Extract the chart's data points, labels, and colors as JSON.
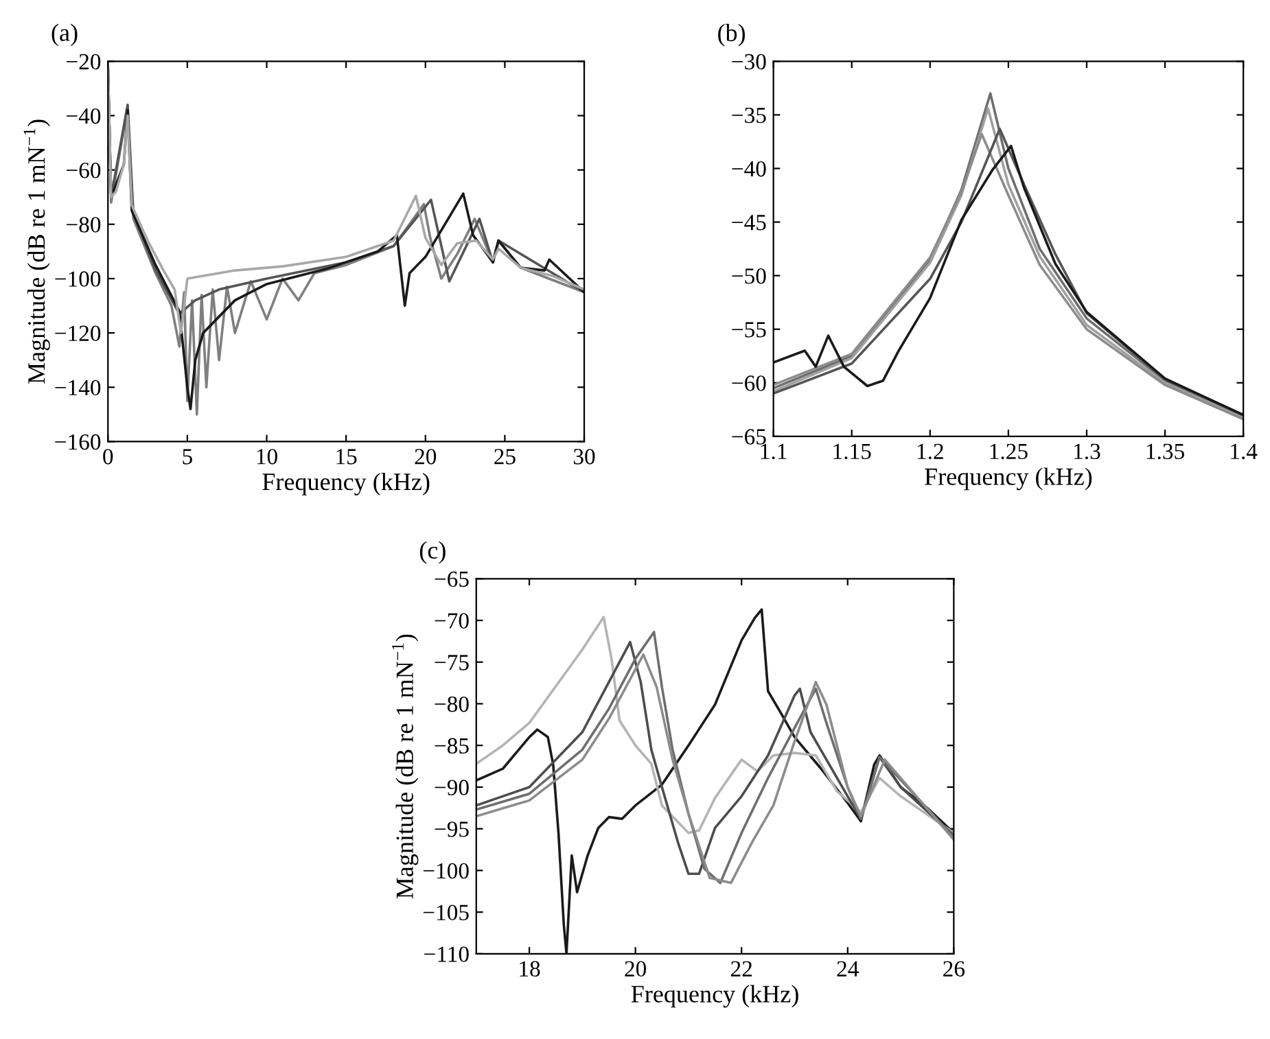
{
  "chart_data": [
    {
      "type": "line",
      "annotations": [
        "(a)"
      ],
      "xlabel": "Frequency (kHz)",
      "ylabel": "Magnitude (dB re 1 mN$^{−1}$)",
      "xlim": [
        0,
        30
      ],
      "ylim": [
        -160,
        -20
      ],
      "xticks": [
        0,
        5,
        10,
        15,
        20,
        25,
        30
      ],
      "yticks": [
        -160,
        -140,
        -120,
        -100,
        -80,
        -60,
        -40,
        -20
      ],
      "grid": false,
      "legend": false,
      "line_style": "solid",
      "marker": "none",
      "series": [
        {
          "color": "#7f7f7f",
          "x": [
            0,
            0.2,
            1.24,
            1.6,
            3,
            4,
            4.5,
            4.8,
            5.0,
            5.3,
            5.6,
            5.9,
            6.2,
            6.6,
            7,
            7.5,
            8,
            9,
            10,
            11,
            12,
            13,
            15,
            18,
            19.9,
            20.3,
            21,
            22,
            23.1,
            24.25,
            24.6,
            26,
            30
          ],
          "values": [
            -22,
            -72,
            -37,
            -78,
            -98,
            -110,
            -125,
            -105,
            -145,
            -108,
            -150,
            -106,
            -140,
            -104,
            -130,
            -103,
            -120,
            -101,
            -115,
            -100,
            -108,
            -98,
            -95,
            -88,
            -72.6,
            -85,
            -100,
            -91,
            -78,
            -94,
            -86,
            -96,
            -105
          ]
        },
        {
          "color": "#555555",
          "x": [
            0,
            0.2,
            1.24,
            1.6,
            3,
            4.5,
            5.5,
            7,
            10,
            15,
            18,
            20.35,
            21.5,
            23.4,
            24.25,
            24.6,
            30
          ],
          "values": [
            -22,
            -70,
            -36,
            -76,
            -97,
            -113,
            -108,
            -104,
            -100,
            -94,
            -88,
            -71,
            -101,
            -78,
            -94,
            -86,
            -105
          ]
        },
        {
          "color": "#1a1a1a",
          "x": [
            0,
            0.2,
            1.0,
            1.24,
            1.5,
            3,
            4.5,
            5.0,
            5.2,
            5.5,
            6,
            8,
            10,
            14,
            17,
            18.2,
            18.7,
            19,
            20,
            22.38,
            23,
            24.25,
            24.6,
            26,
            27.5,
            27.8,
            30
          ],
          "values": [
            -22,
            -70,
            -58,
            -38,
            -75,
            -95,
            -112,
            -140,
            -148,
            -130,
            -120,
            -108,
            -102,
            -96,
            -90,
            -84,
            -110,
            -98,
            -92,
            -68.7,
            -84,
            -94,
            -86,
            -96,
            -97,
            -93,
            -105
          ]
        },
        {
          "color": "#a8a8a8",
          "x": [
            0,
            0.2,
            0.5,
            1.0,
            1.24,
            1.5,
            2.5,
            3.5,
            4.2,
            4.6,
            5,
            6,
            8,
            11,
            15,
            18,
            19.4,
            20,
            21,
            22,
            23.2,
            24.25,
            24.6,
            26,
            28,
            30
          ],
          "values": [
            -22,
            -70,
            -68,
            -58,
            -40,
            -73,
            -86,
            -97,
            -104,
            -120,
            -100,
            -99,
            -97,
            -95.5,
            -92,
            -86,
            -69.5,
            -85,
            -95,
            -87,
            -86,
            -93,
            -89,
            -96,
            -99,
            -104
          ]
        }
      ]
    },
    {
      "type": "line",
      "annotations": [
        "(b)"
      ],
      "xlabel": "Frequency (kHz)",
      "xlim": [
        1.1,
        1.4
      ],
      "ylim": [
        -65,
        -30
      ],
      "xticks": [
        1.1,
        1.15,
        1.2,
        1.25,
        1.3,
        1.35,
        1.4
      ],
      "yticks": [
        -65,
        -60,
        -55,
        -50,
        -45,
        -40,
        -35,
        -30
      ],
      "grid": false,
      "legend": false,
      "line_style": "solid",
      "marker": "none",
      "series": [
        {
          "color": "#6e6e6e",
          "x": [
            1.1,
            1.15,
            1.2,
            1.22,
            1.2385,
            1.25,
            1.27,
            1.3,
            1.35,
            1.4
          ],
          "values": [
            -60.5,
            -57.5,
            -48.5,
            -42,
            -33,
            -40,
            -47.5,
            -54,
            -59.8,
            -63.2
          ]
        },
        {
          "color": "#a0a0a0",
          "x": [
            1.1,
            1.15,
            1.2,
            1.22,
            1.237,
            1.25,
            1.27,
            1.3,
            1.35,
            1.4
          ],
          "values": [
            -60.8,
            -57.7,
            -48.8,
            -42.5,
            -34.4,
            -41.5,
            -48.2,
            -54.6,
            -60,
            -63.3
          ]
        },
        {
          "color": "#8c8c8c",
          "x": [
            1.1,
            1.15,
            1.2,
            1.22,
            1.233,
            1.25,
            1.27,
            1.3,
            1.35,
            1.4
          ],
          "values": [
            -60.2,
            -57.3,
            -48.3,
            -42.2,
            -36.8,
            -42.5,
            -49,
            -55,
            -60.2,
            -63.4
          ]
        },
        {
          "color": "#555555",
          "x": [
            1.1,
            1.15,
            1.2,
            1.22,
            1.2445,
            1.26,
            1.28,
            1.3,
            1.35,
            1.4
          ],
          "values": [
            -61,
            -58.2,
            -50.3,
            -45,
            -36.3,
            -41.5,
            -48,
            -53.5,
            -59.7,
            -63
          ]
        },
        {
          "color": "#1a1a1a",
          "x": [
            1.1,
            1.12,
            1.127,
            1.135,
            1.145,
            1.16,
            1.17,
            1.18,
            1.2,
            1.22,
            1.24,
            1.2517,
            1.26,
            1.28,
            1.3,
            1.35,
            1.4
          ],
          "values": [
            -58.1,
            -57,
            -58.5,
            -55.6,
            -58.5,
            -60.3,
            -59.8,
            -57,
            -52.1,
            -44.8,
            -40.1,
            -37.9,
            -41.8,
            -48.9,
            -53.4,
            -59.6,
            -63
          ]
        }
      ]
    },
    {
      "type": "line",
      "annotations": [
        "(c)"
      ],
      "xlabel": "Frequency (kHz)",
      "ylabel": "Magnitude (dB re 1 mN$^{−1}$)",
      "xlim": [
        17,
        26
      ],
      "ylim": [
        -110,
        -65
      ],
      "xticks": [
        18,
        20,
        22,
        24,
        26
      ],
      "yticks": [
        -110,
        -105,
        -100,
        -95,
        -90,
        -85,
        -80,
        -75,
        -70,
        -65
      ],
      "grid": false,
      "legend": false,
      "line_style": "solid",
      "marker": "none",
      "series": [
        {
          "color": "#1a1a1a",
          "x": [
            17,
            17.5,
            18,
            18.15,
            18.35,
            18.45,
            18.55,
            18.65,
            18.7,
            18.8,
            18.9,
            19.1,
            19.3,
            19.5,
            19.75,
            20,
            20.5,
            21,
            21.5,
            22,
            22.25,
            22.38,
            22.5,
            22.75,
            23,
            23.5,
            24,
            24.25,
            24.5,
            24.6,
            25,
            25.5,
            26
          ],
          "values": [
            -89.2,
            -87.8,
            -84,
            -83.1,
            -84,
            -87.3,
            -95.5,
            -106.5,
            -110,
            -98.2,
            -102.6,
            -98.2,
            -94.9,
            -93.6,
            -93.8,
            -92.2,
            -89.7,
            -85,
            -80.1,
            -72.4,
            -69.7,
            -68.7,
            -78.5,
            -81.2,
            -84,
            -87.8,
            -91.9,
            -94.1,
            -87.3,
            -86.2,
            -90,
            -92.5,
            -95.5
          ]
        },
        {
          "color": "#b4b4b4",
          "x": [
            17,
            17.5,
            18,
            18.5,
            19,
            19.4,
            19.55,
            19.7,
            20,
            20.3,
            20.5,
            21,
            21.2,
            21.5,
            22,
            22.3,
            22.6,
            23,
            23.4,
            23.8,
            24.25,
            24.6,
            25,
            26
          ],
          "values": [
            -87.2,
            -85,
            -82.3,
            -77.9,
            -73.5,
            -69.6,
            -74.6,
            -82,
            -85,
            -87.2,
            -92.2,
            -95.5,
            -95.2,
            -91.3,
            -86.7,
            -88.1,
            -86.2,
            -85.9,
            -86.2,
            -90.5,
            -93,
            -88.9,
            -91.1,
            -95.5
          ]
        },
        {
          "color": "#4d4d4d",
          "x": [
            17,
            18,
            19,
            19.5,
            19.9,
            20.1,
            20.3,
            20.5,
            20.8,
            21,
            21.2,
            21.5,
            22,
            22.5,
            23,
            23.1,
            23.3,
            23.6,
            24,
            24.25,
            24.6,
            25,
            26
          ],
          "values": [
            -92.2,
            -90,
            -83.4,
            -77.4,
            -72.6,
            -77.4,
            -85.5,
            -90,
            -96.6,
            -100.4,
            -100.4,
            -94.9,
            -91.1,
            -86.2,
            -79,
            -78.2,
            -83.4,
            -86.7,
            -91.1,
            -93.8,
            -86.4,
            -90,
            -95.8
          ]
        },
        {
          "color": "#6e6e6e",
          "x": [
            17,
            18,
            19,
            19.5,
            20,
            20.35,
            20.5,
            20.7,
            21,
            21.3,
            21.6,
            22,
            22.5,
            23,
            23.4,
            23.6,
            24,
            24.25,
            24.6,
            26
          ],
          "values": [
            -92.7,
            -90.8,
            -85.5,
            -80.6,
            -74.6,
            -71.4,
            -78,
            -85.5,
            -93.2,
            -99.8,
            -101.5,
            -95.5,
            -88.9,
            -82.9,
            -78.2,
            -82.3,
            -90,
            -93.8,
            -86.4,
            -96
          ]
        },
        {
          "color": "#8c8c8c",
          "x": [
            17,
            18,
            19,
            19.5,
            20.15,
            20.4,
            20.7,
            21,
            21.4,
            21.8,
            22.2,
            22.6,
            23,
            23.4,
            23.6,
            24,
            24.25,
            24.7,
            26
          ],
          "values": [
            -93.5,
            -91.6,
            -86.7,
            -81.8,
            -74.1,
            -78,
            -86.7,
            -93.2,
            -100.9,
            -101.5,
            -96.6,
            -92.2,
            -84.5,
            -77.4,
            -80.1,
            -90,
            -93.5,
            -86.7,
            -96.3
          ]
        }
      ]
    }
  ]
}
